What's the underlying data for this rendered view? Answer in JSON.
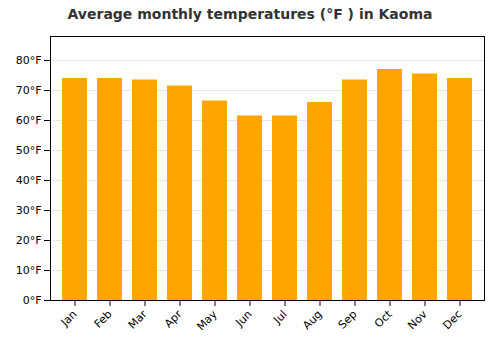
{
  "chart_data": {
    "type": "bar",
    "title": "Average monthly temperatures (°F ) in Kaoma",
    "categories": [
      "Jan",
      "Feb",
      "Mar",
      "Apr",
      "May",
      "Jun",
      "Jul",
      "Aug",
      "Sep",
      "Oct",
      "Nov",
      "Dec"
    ],
    "values": [
      74,
      74,
      73.5,
      71.5,
      66.5,
      61.5,
      61.5,
      66,
      73.5,
      77,
      75.5,
      74
    ],
    "color": "#FFA500",
    "ylim": [
      0,
      88
    ],
    "yticks": [
      {
        "value": 0,
        "label": "0°F"
      },
      {
        "value": 10,
        "label": "10°F"
      },
      {
        "value": 20,
        "label": "20°F"
      },
      {
        "value": 30,
        "label": "30°F"
      },
      {
        "value": 40,
        "label": "40°F"
      },
      {
        "value": 50,
        "label": "50°F"
      },
      {
        "value": 60,
        "label": "60°F"
      },
      {
        "value": 70,
        "label": "70°F"
      },
      {
        "value": 80,
        "label": "80°F"
      }
    ],
    "grid": true
  }
}
